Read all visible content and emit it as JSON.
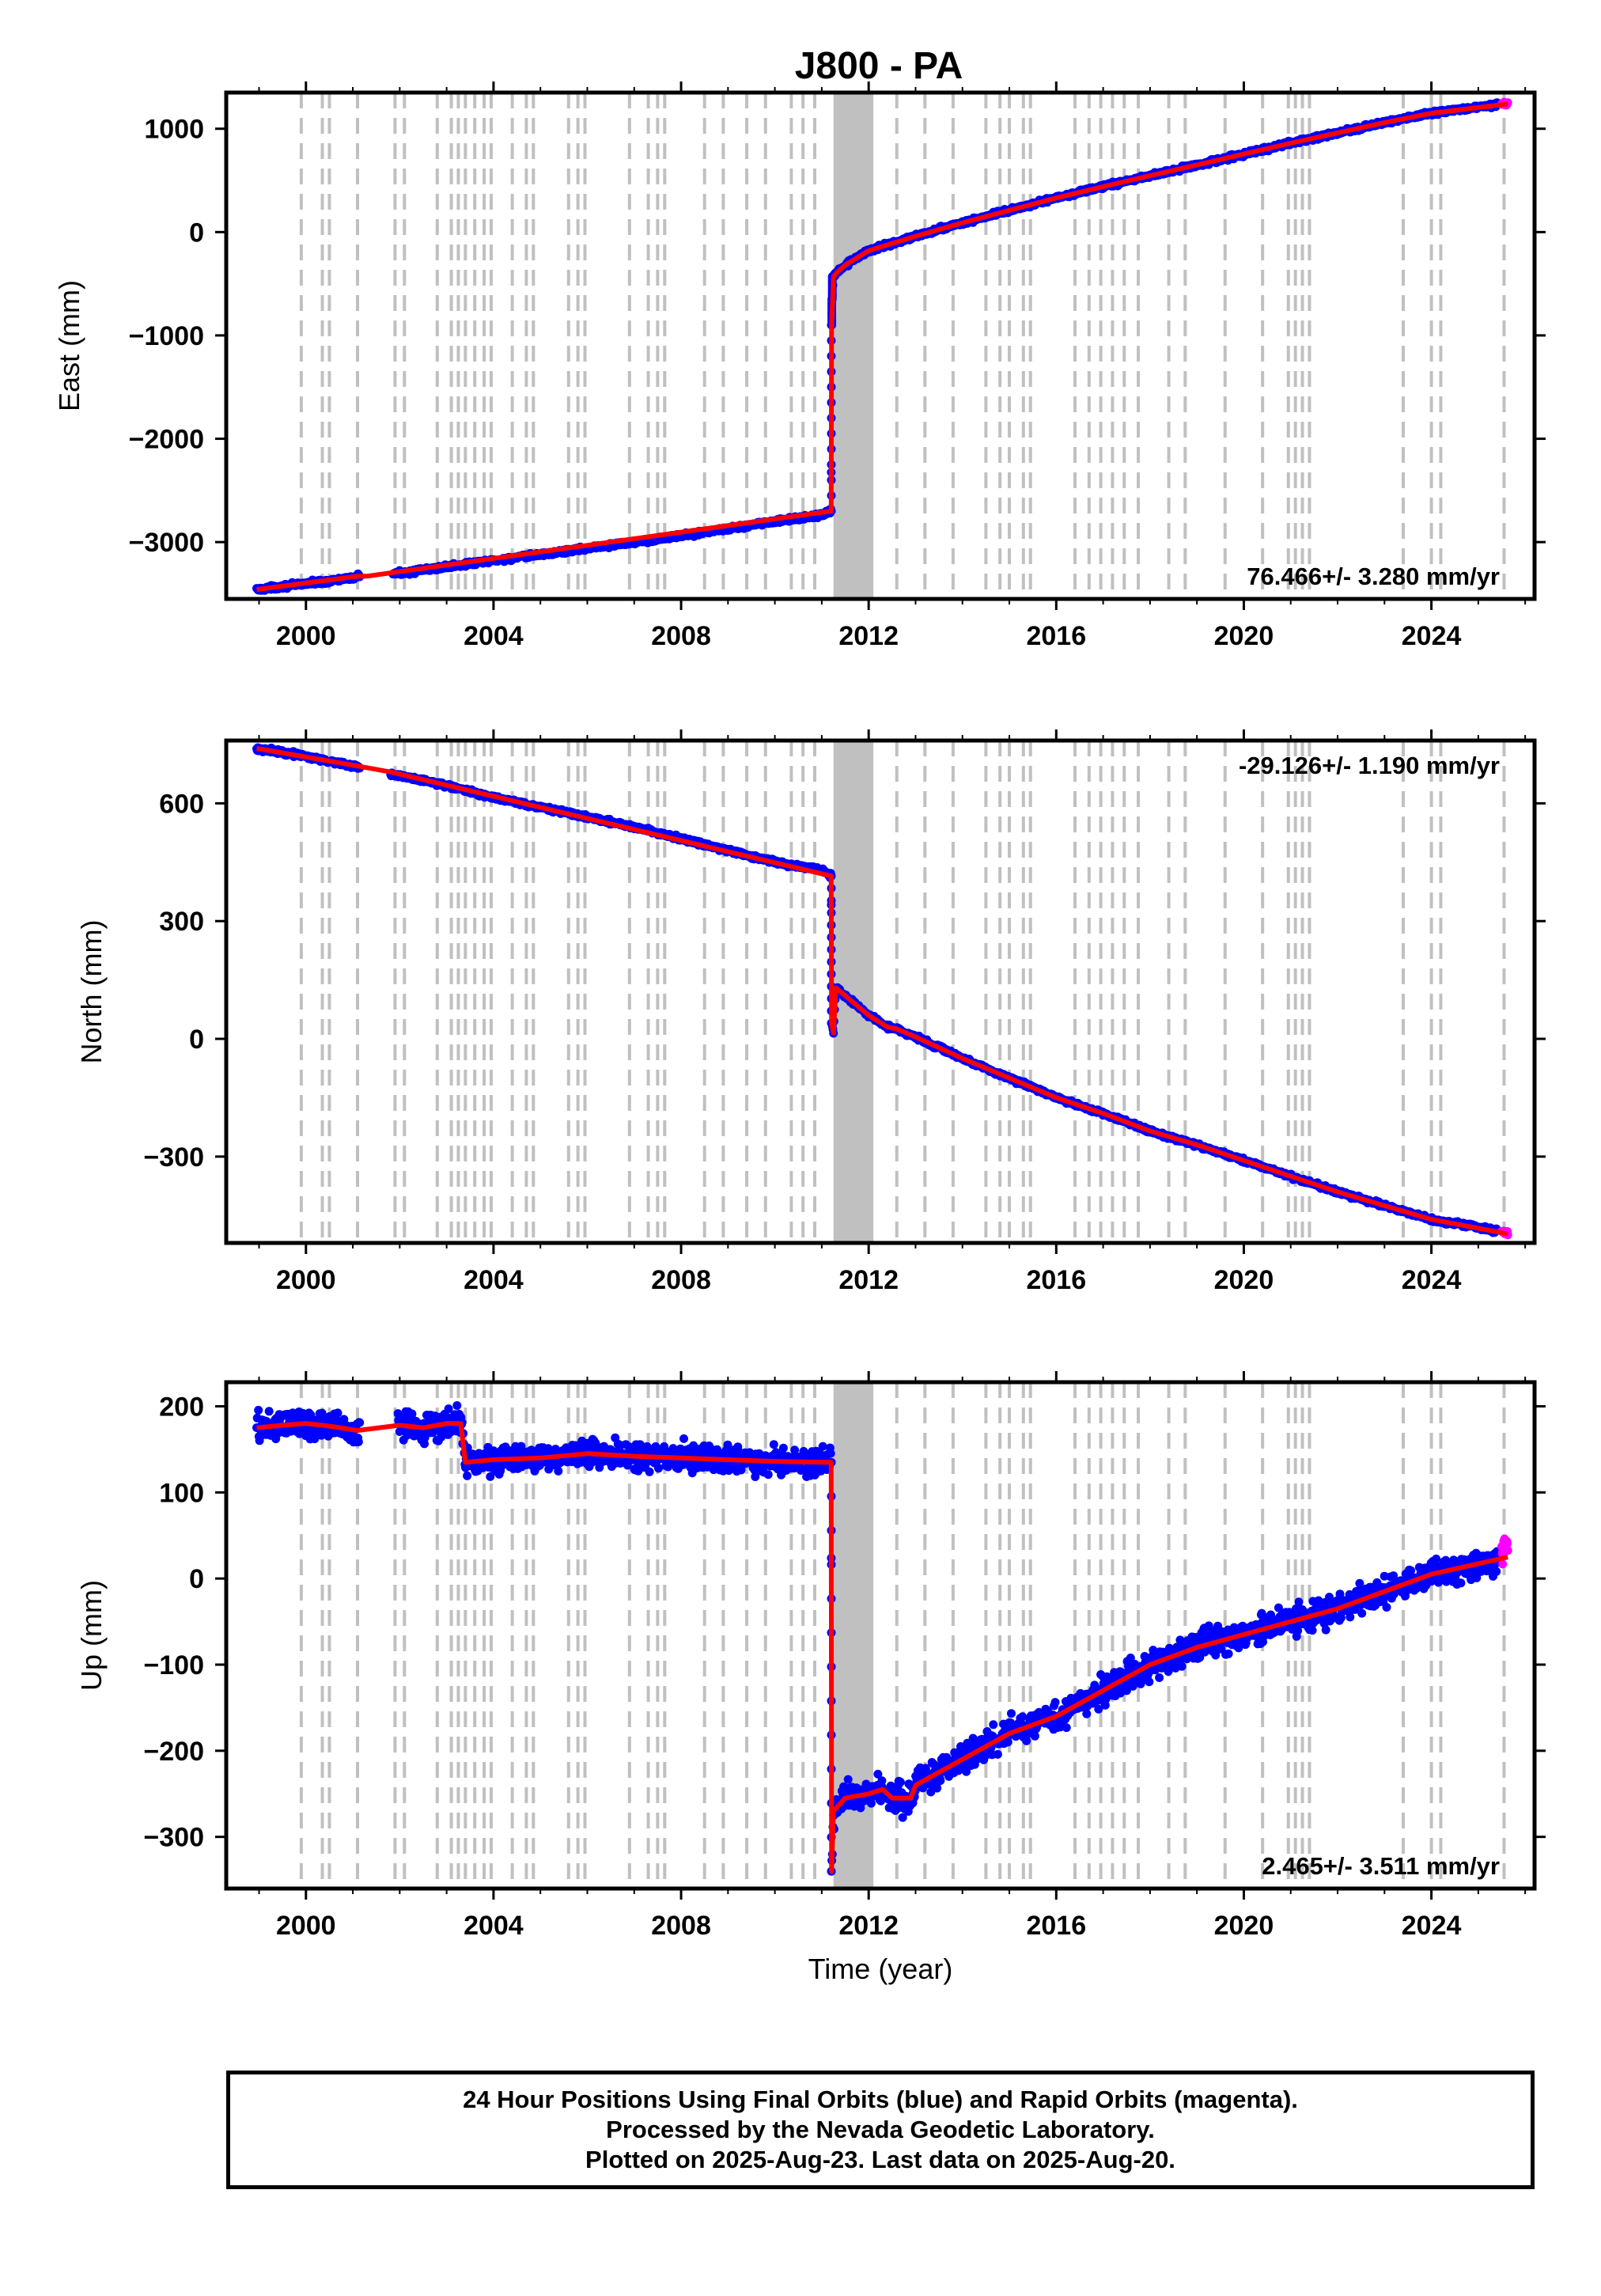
{
  "title": "J800 - PA",
  "colors": {
    "final_orbits": "#0000ff",
    "rapid_orbits": "#ff00ff",
    "model": "#ff0000",
    "equipment_lines": "#c0c0c0"
  },
  "chart_data": [
    {
      "type": "scatter",
      "name": "east",
      "ylabel": "East (mm)",
      "xlabel": "",
      "xlim": [
        1998.3,
        2026.2
      ],
      "ylim": [
        -3550,
        1350
      ],
      "xticks": [
        2000,
        2004,
        2008,
        2012,
        2016,
        2020,
        2024
      ],
      "yticks": [
        -3000,
        -2000,
        -1000,
        0,
        1000
      ],
      "grid": false,
      "rate_label": "76.466+/- 3.280 mm/yr",
      "rate_label_position": "bottom-right",
      "series": [
        {
          "name": "Final Orbits",
          "color": "#0000ff",
          "x": [
            1998.95,
            2000,
            2001,
            2001.1,
            2002,
            2003,
            2004,
            2005,
            2006,
            2007,
            2008,
            2009,
            2010,
            2011,
            2011.2,
            2011.21,
            2011.22,
            2011.25,
            2011.35,
            2011.5,
            2012,
            2013,
            2014,
            2015,
            2016,
            2017,
            2018,
            2019,
            2020,
            2021,
            2022,
            2023,
            2024,
            2025.4
          ],
          "y": [
            -3460,
            -3400,
            -3350,
            -3330,
            -3300,
            -3240,
            -3180,
            -3120,
            -3060,
            -3000,
            -2940,
            -2870,
            -2800,
            -2740,
            -2700,
            -900,
            -650,
            -430,
            -380,
            -320,
            -180,
            -40,
            90,
            210,
            330,
            440,
            545,
            650,
            755,
            860,
            960,
            1060,
            1150,
            1230
          ]
        },
        {
          "name": "Rapid Orbits",
          "color": "#ff00ff",
          "x": [
            2025.5,
            2025.63
          ],
          "y": [
            1235,
            1245
          ]
        }
      ],
      "model": {
        "color": "#ff0000",
        "x": [
          1998.95,
          2001.1,
          2001.3,
          2011.2,
          2011.21,
          2011.25,
          2011.35,
          2011.5,
          2012,
          2013,
          2014,
          2015,
          2016,
          2017,
          2018,
          2019,
          2020,
          2021,
          2022,
          2023,
          2024,
          2025.63
        ],
        "y": [
          -3460,
          -3330,
          -3330,
          -2700,
          -900,
          -430,
          -380,
          -320,
          -180,
          -40,
          90,
          210,
          330,
          440,
          545,
          650,
          755,
          860,
          960,
          1060,
          1150,
          1240
        ]
      }
    },
    {
      "type": "scatter",
      "name": "north",
      "ylabel": "North (mm)",
      "xlabel": "",
      "xlim": [
        1998.3,
        2026.2
      ],
      "ylim": [
        -520,
        760
      ],
      "xticks": [
        2000,
        2004,
        2008,
        2012,
        2016,
        2020,
        2024
      ],
      "yticks": [
        -300,
        0,
        300,
        600
      ],
      "grid": false,
      "rate_label": "-29.126+/- 1.190 mm/yr",
      "rate_label_position": "top-right",
      "series": [
        {
          "name": "Final Orbits",
          "color": "#0000ff",
          "x": [
            1998.95,
            2000,
            2001,
            2002,
            2003,
            2004,
            2005,
            2006,
            2007,
            2008,
            2009,
            2010,
            2011,
            2011.2,
            2011.21,
            2011.25,
            2011.3,
            2011.5,
            2012,
            2012.4,
            2012.6,
            2013,
            2014,
            2015,
            2016,
            2017,
            2018,
            2019,
            2020,
            2021,
            2022,
            2023,
            2024,
            2025.4
          ],
          "y": [
            740,
            720,
            695,
            670,
            645,
            615,
            590,
            565,
            540,
            510,
            480,
            450,
            430,
            415,
            40,
            15,
            130,
            110,
            60,
            30,
            25,
            5,
            -50,
            -100,
            -150,
            -190,
            -235,
            -270,
            -310,
            -350,
            -390,
            -425,
            -460,
            -490
          ]
        },
        {
          "name": "Rapid Orbits",
          "color": "#ff00ff",
          "x": [
            2025.5,
            2025.63
          ],
          "y": [
            -492,
            -497
          ]
        }
      ],
      "model": {
        "color": "#ff0000",
        "x": [
          1998.95,
          2001.1,
          2001.8,
          2011.2,
          2011.21,
          2011.25,
          2011.3,
          2011.5,
          2012,
          2012.4,
          2012.6,
          2013,
          2014,
          2015,
          2016,
          2017,
          2018,
          2019,
          2020,
          2021,
          2022,
          2023,
          2024,
          2025.63
        ],
        "y": [
          740,
          695,
          680,
          415,
          40,
          15,
          130,
          110,
          60,
          30,
          25,
          5,
          -50,
          -100,
          -150,
          -190,
          -235,
          -270,
          -310,
          -350,
          -390,
          -425,
          -460,
          -497
        ]
      }
    },
    {
      "type": "scatter",
      "name": "up",
      "ylabel": "Up (mm)",
      "xlabel": "Time (year)",
      "xlim": [
        1998.3,
        2026.2
      ],
      "ylim": [
        -360,
        228
      ],
      "xticks": [
        2000,
        2004,
        2008,
        2012,
        2016,
        2020,
        2024
      ],
      "yticks": [
        -300,
        -200,
        -100,
        0,
        100,
        200
      ],
      "grid": false,
      "rate_label": "2.465+/- 3.511 mm/yr",
      "rate_label_position": "bottom-right",
      "series": [
        {
          "name": "Final Orbits",
          "color": "#0000ff",
          "x": [
            1998.95,
            1999.5,
            2000,
            2000.5,
            2001.1,
            2002,
            2002.5,
            2003,
            2003.3,
            2003.4,
            2004,
            2005,
            2006,
            2007,
            2008,
            2009,
            2010,
            2011.1,
            2011.2,
            2011.21,
            2011.25,
            2011.5,
            2012,
            2012.3,
            2012.5,
            2012.9,
            2013,
            2014,
            2015,
            2016,
            2017,
            2018,
            2019,
            2020,
            2021,
            2022,
            2023,
            2024,
            2025.4
          ],
          "y": [
            175,
            178,
            180,
            177,
            170,
            178,
            175,
            180,
            180,
            135,
            138,
            140,
            145,
            142,
            140,
            138,
            136,
            135,
            135,
            -340,
            -270,
            -255,
            -250,
            -245,
            -255,
            -255,
            -240,
            -210,
            -180,
            -160,
            -130,
            -100,
            -80,
            -65,
            -50,
            -35,
            -15,
            5,
            20
          ]
        },
        {
          "name": "Rapid Orbits",
          "color": "#ff00ff",
          "x": [
            2025.5,
            2025.6,
            2025.63
          ],
          "y": [
            30,
            45,
            40
          ]
        }
      ],
      "model": {
        "color": "#ff0000",
        "x": [
          1998.95,
          1999.5,
          2000,
          2000.5,
          2001.1,
          2002,
          2002.5,
          2003,
          2003.3,
          2003.4,
          2004,
          2005,
          2006,
          2007,
          2008,
          2009,
          2010,
          2011.1,
          2011.2,
          2011.21,
          2011.25,
          2011.5,
          2012,
          2012.3,
          2012.5,
          2012.9,
          2013,
          2014,
          2015,
          2016,
          2017,
          2018,
          2019,
          2020,
          2021,
          2022,
          2023,
          2024,
          2025.63
        ],
        "y": [
          175,
          178,
          180,
          177,
          172,
          178,
          175,
          180,
          180,
          135,
          138,
          140,
          145,
          142,
          140,
          138,
          136,
          135,
          135,
          -340,
          -270,
          -255,
          -250,
          -245,
          -255,
          -255,
          -240,
          -210,
          -180,
          -160,
          -130,
          -100,
          -80,
          -65,
          -50,
          -35,
          -15,
          5,
          25
        ]
      }
    }
  ],
  "equipment_lines": [
    1999.9,
    2000.35,
    2000.5,
    2001.1,
    2001.9,
    2002.1,
    2002.8,
    2003.1,
    2003.25,
    2003.4,
    2003.6,
    2003.8,
    2003.95,
    2004.4,
    2004.7,
    2004.85,
    2005.6,
    2005.8,
    2005.95,
    2006.9,
    2007.3,
    2007.5,
    2007.65,
    2008.5,
    2008.9,
    2009.4,
    2009.8,
    2010.35,
    2010.6,
    2010.85,
    2012.6,
    2013.2,
    2013.8,
    2014.5,
    2014.8,
    2015.0,
    2015.3,
    2015.45,
    2016.4,
    2016.7,
    2016.95,
    2017.2,
    2017.45,
    2017.75,
    2018.4,
    2018.75,
    2019.6,
    2020.4,
    2020.95,
    2021.1,
    2021.25,
    2021.4,
    2023.4,
    2024.0,
    2024.2,
    2025.55
  ],
  "equipment_band": [
    2011.25,
    2012.1
  ],
  "footer": {
    "line1": "24 Hour Positions Using Final Orbits (blue) and Rapid Orbits (magenta).",
    "line2": "Processed by the Nevada Geodetic Laboratory.",
    "line3": "Plotted on 2025-Aug-23. Last data on 2025-Aug-20."
  }
}
